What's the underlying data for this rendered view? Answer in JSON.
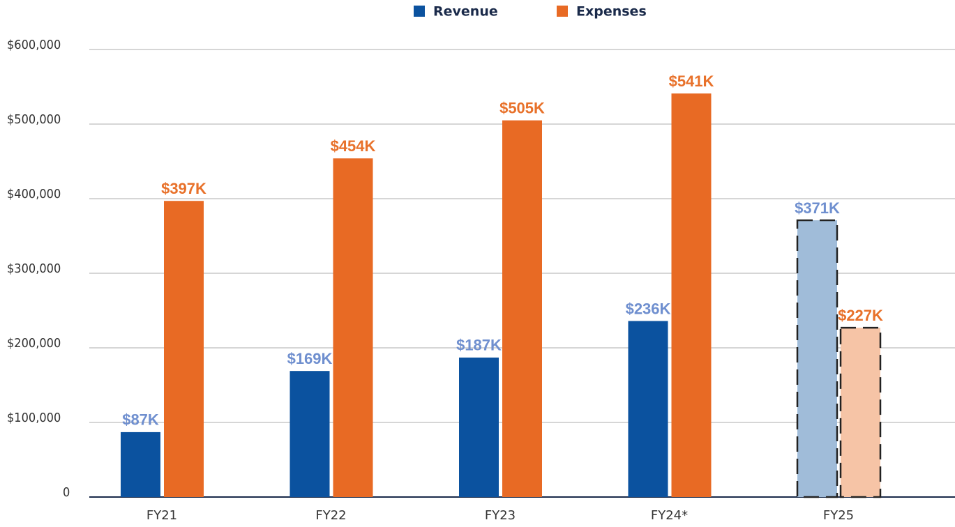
{
  "chart_data": {
    "type": "bar",
    "categories": [
      "FY21",
      "FY22",
      "FY23",
      "FY24*",
      "FY25"
    ],
    "series": [
      {
        "name": "Revenue",
        "color": "#0b529f",
        "label_color": "#6f8fcf",
        "colors": [
          "#0b529f",
          "#0b529f",
          "#0b529f",
          "#0b529f",
          "#a0bcd9"
        ],
        "values": [
          87000,
          169000,
          187000,
          236000,
          371000
        ],
        "value_labels": [
          "$87K",
          "$169K",
          "$187K",
          "$236K",
          "$371K"
        ]
      },
      {
        "name": "Expenses",
        "color": "#e86a24",
        "label_color": "#e8712a",
        "colors": [
          "#e86a24",
          "#e86a24",
          "#e86a24",
          "#e86a24",
          "#f6c4a6"
        ],
        "values": [
          397000,
          454000,
          505000,
          541000,
          227000
        ],
        "value_labels": [
          "$397K",
          "$454K",
          "$505K",
          "$541K",
          "$227K"
        ]
      }
    ],
    "dashed_outline": [
      false,
      false,
      false,
      false,
      true
    ],
    "ylim": [
      0,
      600000
    ],
    "yticks": [
      0,
      {
        "value": 100000,
        "label": "$100,000"
      },
      {
        "value": 200000,
        "label": "$200,000"
      },
      {
        "value": 300000,
        "label": "$300,000"
      },
      {
        "value": 400000,
        "label": "$400,000"
      },
      {
        "value": 500000,
        "label": "$500,000"
      },
      {
        "value": 600000,
        "label": "$600,000"
      }
    ],
    "grid": true,
    "legend": "top"
  }
}
